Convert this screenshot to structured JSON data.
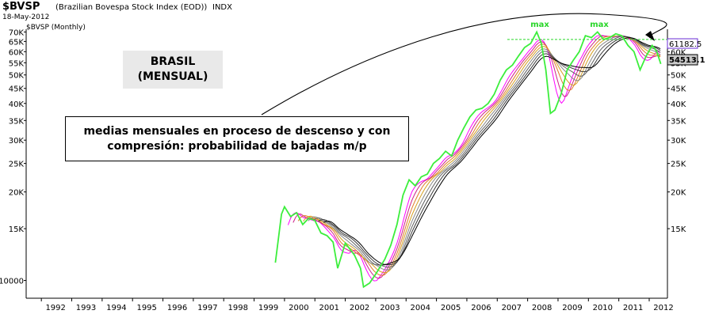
{
  "header": {
    "symbol": "$BVSP",
    "description": "(Brazilian Bovespa Stock Index (EOD))",
    "exchange": "INDX",
    "date": "18-May-2012",
    "series_label": "$BVSP (Monthly)"
  },
  "annotations": {
    "box_title_line1": "BRASIL",
    "box_title_line2": "(MENSUAL)",
    "comment_line1": "medias mensuales en proceso de descenso y con",
    "comment_line2": "compresión: probabilidad de bajadas m/p",
    "max_label_1": "max",
    "max_label_2": "max"
  },
  "colors": {
    "price_line": "#3cee3c",
    "max_line": "#29d629",
    "ribbon": [
      "#ff00ff",
      "#cc2288",
      "#e07a2a",
      "#d4a020",
      "#888888",
      "#5f5f5f",
      "#3a3a3a",
      "#000000"
    ],
    "price_box": "#c8c8c8",
    "ma_box": "#6a2bd6"
  },
  "chart_data": {
    "type": "line",
    "title": "$BVSP (Monthly)",
    "scale": "log",
    "ylim": [
      8700,
      71500
    ],
    "xlim": [
      1991.5,
      2012.6
    ],
    "x_ticks": [
      "1992",
      "1993",
      "1994",
      "1995",
      "1996",
      "1997",
      "1998",
      "1999",
      "2000",
      "2001",
      "2002",
      "2003",
      "2004",
      "2005",
      "2006",
      "2007",
      "2008",
      "2009",
      "2010",
      "2011",
      "2012"
    ],
    "y_ticks_left": [
      "70K",
      "65K",
      "60K",
      "55K",
      "50K",
      "45K",
      "40K",
      "35K",
      "30K",
      "25K",
      "20K",
      "15K",
      "10000"
    ],
    "y_ticks_right": [
      "65K",
      "60K",
      "55K",
      "50K",
      "45K",
      "40K",
      "35K",
      "30K",
      "25K",
      "20K",
      "15K"
    ],
    "last_price_label": "54513.1",
    "last_ma_label": "61182.5",
    "max_level": 66000,
    "grid": false,
    "legend": "none",
    "series": [
      {
        "x": [
          1999.7,
          1999.9,
          2000.0,
          2000.2,
          2000.4,
          2000.6,
          2000.8,
          2001.0,
          2001.2,
          2001.4,
          2001.6,
          2001.75,
          2002.0,
          2002.3,
          2002.5,
          2002.6,
          2002.8,
          2003.0,
          2003.3,
          2003.5,
          2003.7,
          2003.9,
          2004.1,
          2004.3,
          2004.5,
          2004.7,
          2004.9,
          2005.1,
          2005.3,
          2005.5,
          2005.7,
          2005.9,
          2006.1,
          2006.3,
          2006.5,
          2006.7,
          2006.9,
          2007.1,
          2007.3,
          2007.5,
          2007.7,
          2007.9,
          2008.1,
          2008.3,
          2008.45,
          2008.6,
          2008.75,
          2008.9,
          2009.1,
          2009.3,
          2009.5,
          2009.7,
          2009.9,
          2010.1,
          2010.3,
          2010.5,
          2010.7,
          2010.9,
          2011.1,
          2011.3,
          2011.5,
          2011.7,
          2011.9,
          2012.1,
          2012.25,
          2012.38
        ],
        "values": [
          11500,
          16800,
          17800,
          16500,
          17000,
          15500,
          16300,
          16000,
          14500,
          14200,
          13500,
          11000,
          13400,
          12200,
          11000,
          9500,
          9800,
          10500,
          11800,
          13200,
          15500,
          19500,
          22000,
          21000,
          22500,
          23000,
          25000,
          26000,
          27500,
          26500,
          30000,
          33000,
          36000,
          38000,
          38500,
          40000,
          43000,
          48000,
          52000,
          54000,
          58000,
          62000,
          64000,
          70000,
          64000,
          52000,
          37000,
          38000,
          43000,
          52000,
          56000,
          60000,
          68000,
          67000,
          70000,
          66000,
          67000,
          69000,
          68000,
          63000,
          60000,
          52000,
          58000,
          63000,
          60000,
          54513
        ]
      }
    ]
  }
}
